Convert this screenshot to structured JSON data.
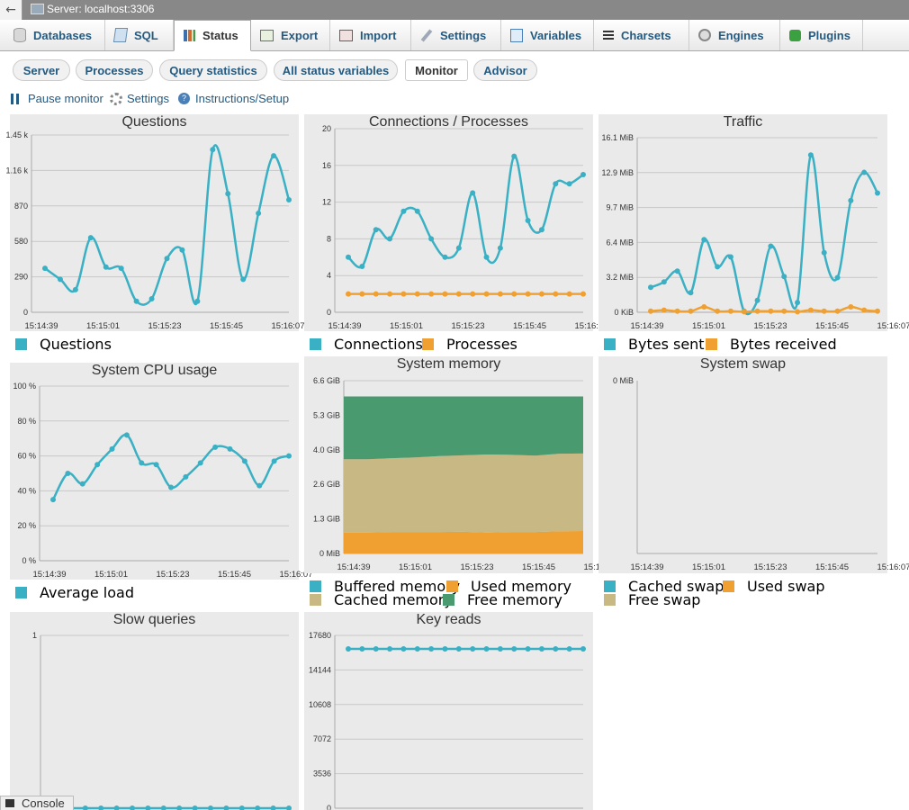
{
  "window": {
    "title": "Server: localhost:3306",
    "back_label": "←"
  },
  "tabs": [
    {
      "label": "Databases",
      "icon": "database-icon"
    },
    {
      "label": "SQL",
      "icon": "sql-icon"
    },
    {
      "label": "Status",
      "icon": "status-icon",
      "active": true
    },
    {
      "label": "Export",
      "icon": "export-icon"
    },
    {
      "label": "Import",
      "icon": "import-icon"
    },
    {
      "label": "Settings",
      "icon": "wrench-icon"
    },
    {
      "label": "Variables",
      "icon": "variables-icon"
    },
    {
      "label": "Charsets",
      "icon": "charsets-icon"
    },
    {
      "label": "Engines",
      "icon": "engines-icon"
    },
    {
      "label": "Plugins",
      "icon": "puzzle-icon"
    }
  ],
  "subtabs": [
    {
      "label": "Server"
    },
    {
      "label": "Processes"
    },
    {
      "label": "Query statistics"
    },
    {
      "label": "All status variables"
    },
    {
      "label": "Monitor",
      "active": true
    },
    {
      "label": "Advisor"
    }
  ],
  "monitor_links": {
    "pause": "Pause monitor",
    "settings": "Settings",
    "instructions": "Instructions/Setup"
  },
  "colors": {
    "teal": "#3ab0c4",
    "orange": "#f0a030",
    "tan": "#c8b884",
    "green": "#4a9a70",
    "plot_bg": "#eaeaea",
    "link": "#235a81"
  },
  "x_ticks": [
    "15:14:39",
    "15:15:01",
    "15:15:23",
    "15:15:45",
    "15:16:07"
  ],
  "console": {
    "label": "Console"
  },
  "chart_data": [
    {
      "id": "questions",
      "type": "line",
      "title": "Questions",
      "y_ticks": [
        "0",
        "290",
        "580",
        "870",
        "1.16 k",
        "1.45 k"
      ],
      "ylim": [
        0,
        1450
      ],
      "series": [
        {
          "name": "Questions",
          "color": "#3ab0c4",
          "values": [
            360,
            270,
            185,
            610,
            370,
            360,
            90,
            110,
            440,
            510,
            90,
            1330,
            970,
            270,
            810,
            1280,
            920
          ]
        }
      ]
    },
    {
      "id": "connections",
      "type": "line",
      "title": "Connections / Processes",
      "y_ticks": [
        "0",
        "4",
        "8",
        "12",
        "16",
        "20"
      ],
      "ylim": [
        0,
        20
      ],
      "series": [
        {
          "name": "Connections",
          "color": "#3ab0c4",
          "values": [
            6,
            5,
            9,
            8,
            11,
            11,
            8,
            6,
            7,
            13,
            6,
            7,
            17,
            10,
            9,
            14,
            14,
            15
          ]
        },
        {
          "name": "Processes",
          "color": "#f0a030",
          "values": [
            2,
            2,
            2,
            2,
            2,
            2,
            2,
            2,
            2,
            2,
            2,
            2,
            2,
            2,
            2,
            2,
            2,
            2
          ]
        }
      ]
    },
    {
      "id": "traffic",
      "type": "line",
      "title": "Traffic",
      "y_ticks": [
        "0 KiB",
        "3.2 MiB",
        "6.4 MiB",
        "9.7 MiB",
        "12.9 MiB",
        "16.1 MiB"
      ],
      "ylim": [
        0,
        16.1
      ],
      "series": [
        {
          "name": "Bytes sent",
          "color": "#3ab0c4",
          "values": [
            2.3,
            2.8,
            3.8,
            1.8,
            6.7,
            4.2,
            5.1,
            0.1,
            1.1,
            6.1,
            3.3,
            0.9,
            14.5,
            5.5,
            3.2,
            10.3,
            12.9,
            11
          ]
        },
        {
          "name": "Bytes received",
          "color": "#f0a030",
          "values": [
            0.1,
            0.2,
            0.1,
            0.1,
            0.5,
            0.1,
            0.1,
            0.05,
            0.1,
            0.1,
            0.1,
            0.05,
            0.2,
            0.1,
            0.1,
            0.5,
            0.2,
            0.1
          ]
        }
      ]
    },
    {
      "id": "cpu",
      "type": "line",
      "title": "System CPU usage",
      "y_ticks": [
        "0 %",
        "20 %",
        "40 %",
        "60 %",
        "80 %",
        "100 %"
      ],
      "ylim": [
        0,
        100
      ],
      "series": [
        {
          "name": "Average load",
          "color": "#3ab0c4",
          "values": [
            35,
            50,
            44,
            55,
            64,
            72,
            56,
            55,
            42,
            48,
            56,
            65,
            64,
            57,
            43,
            57,
            60
          ]
        }
      ]
    },
    {
      "id": "memory",
      "type": "area",
      "title": "System memory",
      "y_ticks": [
        "0 MiB",
        "1.3 GiB",
        "2.6 GiB",
        "4.0 GiB",
        "5.3 GiB",
        "6.6 GiB"
      ],
      "ylim": [
        0,
        6.6
      ],
      "series": [
        {
          "name": "Buffered memory",
          "color": "#3ab0c4",
          "values": [
            0,
            0,
            0,
            0,
            0,
            0,
            0,
            0,
            0,
            0,
            0
          ]
        },
        {
          "name": "Used memory",
          "color": "#f0a030",
          "values": [
            0.8,
            0.8,
            0.82,
            0.82,
            0.82,
            0.83,
            0.8,
            0.82,
            0.82,
            0.85,
            0.86
          ]
        },
        {
          "name": "Cached memory",
          "color": "#c8b884",
          "values": [
            2.8,
            2.8,
            2.82,
            2.85,
            2.9,
            2.92,
            2.98,
            2.95,
            2.92,
            2.96,
            2.96
          ]
        },
        {
          "name": "Free memory",
          "color": "#4a9a70",
          "values": [
            2.4,
            2.4,
            2.36,
            2.33,
            2.28,
            2.25,
            2.22,
            2.23,
            2.26,
            2.19,
            2.18
          ]
        }
      ]
    },
    {
      "id": "swap",
      "type": "area",
      "title": "System swap",
      "y_ticks": [
        "0 MiB"
      ],
      "ylim": [
        0,
        1
      ],
      "series": [
        {
          "name": "Cached swap",
          "color": "#3ab0c4",
          "values": []
        },
        {
          "name": "Used swap",
          "color": "#f0a030",
          "values": []
        },
        {
          "name": "Free swap",
          "color": "#c8b884",
          "values": []
        }
      ]
    },
    {
      "id": "slow",
      "type": "line",
      "title": "Slow queries",
      "y_ticks": [
        "0",
        "1"
      ],
      "ylim": [
        0,
        1
      ],
      "series": [
        {
          "name": "Slow queries",
          "color": "#3ab0c4",
          "values": [
            0,
            0,
            0,
            0,
            0,
            0,
            0,
            0,
            0,
            0,
            0,
            0,
            0,
            0,
            0,
            0
          ]
        }
      ]
    },
    {
      "id": "keyreads",
      "type": "line",
      "title": "Key reads",
      "y_ticks": [
        "0",
        "3536",
        "7072",
        "10608",
        "14144",
        "17680"
      ],
      "ylim": [
        0,
        17680
      ],
      "series": [
        {
          "name": "Key reads",
          "color": "#3ab0c4",
          "values": [
            16300,
            16300,
            16300,
            16300,
            16300,
            16300,
            16300,
            16300,
            16300,
            16300,
            16300,
            16300,
            16300,
            16300,
            16300,
            16300,
            16300,
            16300
          ]
        }
      ]
    }
  ]
}
